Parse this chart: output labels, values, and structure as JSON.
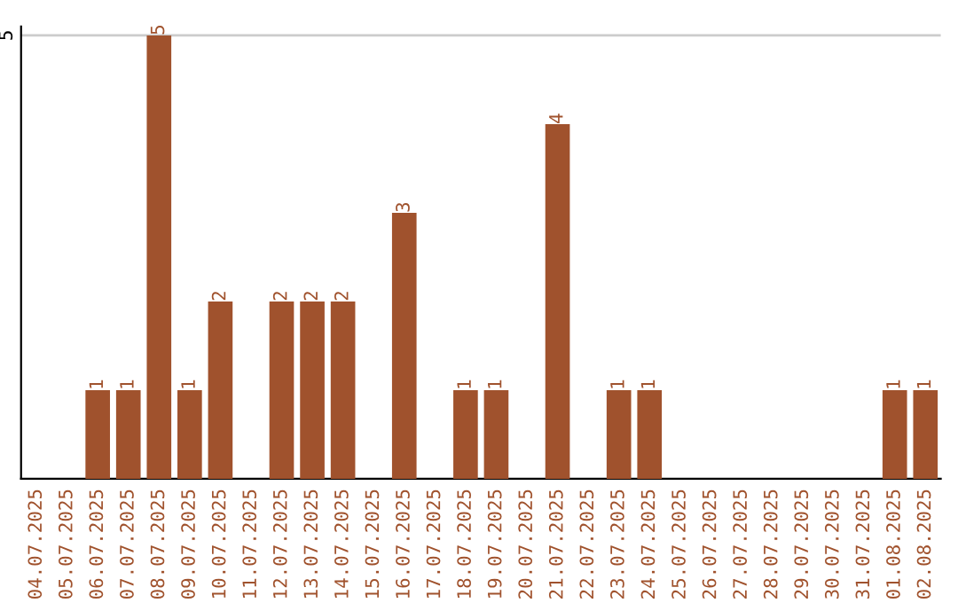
{
  "chart_data": {
    "type": "bar",
    "categories": [
      "04.07.2025",
      "05.07.2025",
      "06.07.2025",
      "07.07.2025",
      "08.07.2025",
      "09.07.2025",
      "10.07.2025",
      "11.07.2025",
      "12.07.2025",
      "13.07.2025",
      "14.07.2025",
      "15.07.2025",
      "16.07.2025",
      "17.07.2025",
      "18.07.2025",
      "19.07.2025",
      "20.07.2025",
      "21.07.2025",
      "22.07.2025",
      "23.07.2025",
      "24.07.2025",
      "25.07.2025",
      "26.07.2025",
      "27.07.2025",
      "28.07.2025",
      "29.07.2025",
      "30.07.2025",
      "31.07.2025",
      "01.08.2025",
      "02.08.2025"
    ],
    "values": [
      0,
      0,
      1,
      1,
      5,
      1,
      2,
      0,
      2,
      2,
      2,
      0,
      3,
      0,
      1,
      1,
      0,
      4,
      0,
      1,
      1,
      0,
      0,
      0,
      0,
      0,
      0,
      0,
      1,
      1
    ],
    "value_labels": [
      null,
      null,
      "1",
      "1",
      "5",
      "1",
      "2",
      null,
      "2",
      "2",
      "2",
      null,
      "3",
      null,
      "1",
      "1",
      null,
      "4",
      null,
      "1",
      "1",
      null,
      null,
      null,
      null,
      null,
      null,
      null,
      "1",
      "1"
    ],
    "color": "#a0522d",
    "ylim": [
      0,
      5.1
    ],
    "yticks": [
      5
    ],
    "grid": "y"
  }
}
